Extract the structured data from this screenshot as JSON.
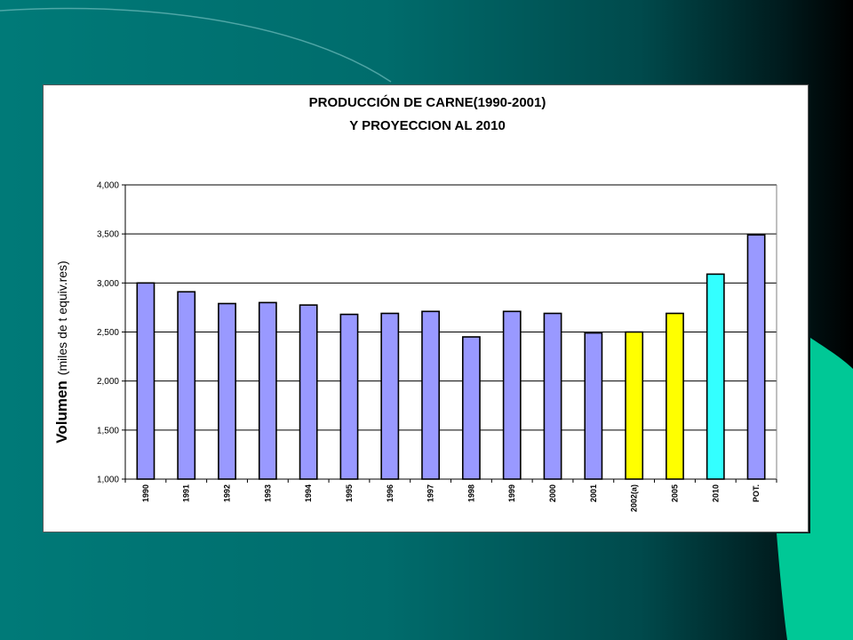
{
  "chart_data": {
    "type": "bar",
    "title": "PRODUCCIÓN DE CARNE(1990-2001)",
    "subtitle": "Y PROYECCION AL 2010",
    "ylabel": "Volumen",
    "ylabel_units": "(miles de t equiv.res)",
    "xlabel": "",
    "ylim": [
      1000,
      4000
    ],
    "yticks": [
      1000,
      1500,
      2000,
      2500,
      3000,
      3500,
      4000
    ],
    "ytick_labels": [
      "1,000",
      "1,500",
      "2,000",
      "2,500",
      "3,000",
      "3,500",
      "4,000"
    ],
    "grid": true,
    "legend": "none",
    "categories": [
      "1990",
      "1991",
      "1992",
      "1993",
      "1994",
      "1995",
      "1996",
      "1997",
      "1998",
      "1999",
      "2000",
      "2001",
      "2002(a)",
      "2005",
      "2010",
      "POT."
    ],
    "values": [
      3000,
      2910,
      2790,
      2800,
      2775,
      2680,
      2690,
      2710,
      2450,
      2710,
      2690,
      2490,
      2500,
      2690,
      3090,
      3490
    ],
    "bar_colors": [
      "#9999ff",
      "#9999ff",
      "#9999ff",
      "#9999ff",
      "#9999ff",
      "#9999ff",
      "#9999ff",
      "#9999ff",
      "#9999ff",
      "#9999ff",
      "#9999ff",
      "#9999ff",
      "#ffff00",
      "#ffff00",
      "#33ffff",
      "#9999ff"
    ]
  }
}
